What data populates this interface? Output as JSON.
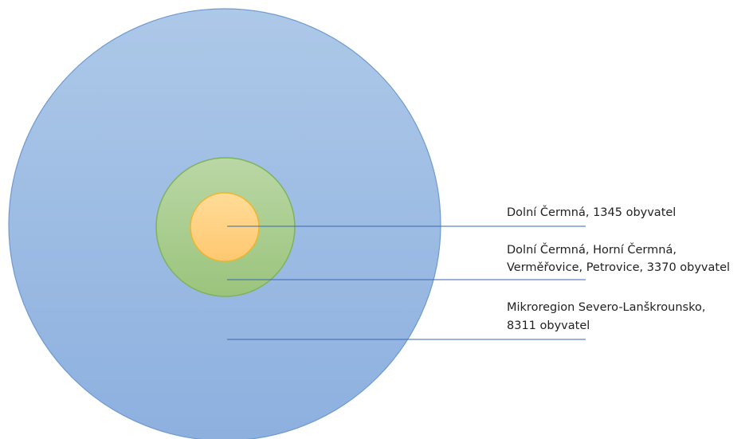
{
  "nodes": [
    {
      "lines": [
        "Dolní Čermná, 1345 obyvatel"
      ]
    },
    {
      "lines": [
        "Dolní Čermná, Horní Čermná,",
        "Verměřovice, Petrovice, 3370 obyvatel"
      ]
    },
    {
      "lines": [
        "Mikroregion Severo-Lanškrounsko,",
        "8311 obyvatel"
      ]
    }
  ]
}
